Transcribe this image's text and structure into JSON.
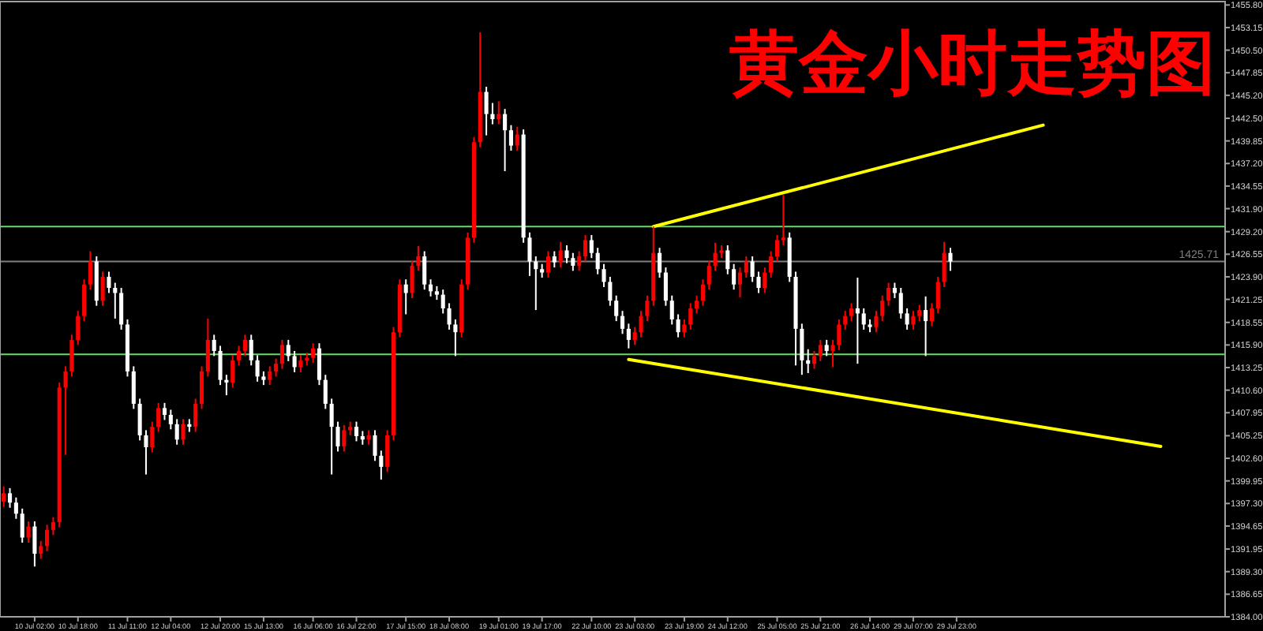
{
  "chart_data": {
    "type": "candlestick",
    "title": "黄金小时走势图",
    "categories": [
      null,
      null,
      null,
      null,
      null,
      "10 Jul 02:00",
      null,
      null,
      null,
      null,
      null,
      null,
      "10 Jul 18:00",
      null,
      null,
      null,
      null,
      null,
      null,
      null,
      "11 Jul 11:00",
      null,
      null,
      null,
      null,
      null,
      null,
      "12 Jul 04:00",
      null,
      null,
      null,
      null,
      null,
      null,
      null,
      "12 Jul 20:00",
      null,
      null,
      null,
      null,
      null,
      null,
      "15 Jul 13:00",
      null,
      null,
      null,
      null,
      null,
      null,
      null,
      "16 Jul 06:00",
      null,
      null,
      null,
      null,
      null,
      null,
      "16 Jul 22:00",
      null,
      null,
      null,
      null,
      null,
      null,
      null,
      "17 Jul 15:00",
      null,
      null,
      null,
      null,
      null,
      null,
      "18 Jul 08:00",
      null,
      null,
      null,
      null,
      null,
      null,
      null,
      "19 Jul 01:00",
      null,
      null,
      null,
      null,
      null,
      null,
      "19 Jul 17:00",
      null,
      null,
      null,
      null,
      null,
      null,
      null,
      "22 Jul 10:00",
      null,
      null,
      null,
      null,
      null,
      null,
      "23 Jul 03:00",
      null,
      null,
      null,
      null,
      null,
      null,
      null,
      "23 Jul 19:00",
      null,
      null,
      null,
      null,
      null,
      null,
      "24 Jul 12:00",
      null,
      null,
      null,
      null,
      null,
      null,
      null,
      "25 Jul 05:00",
      null,
      null,
      null,
      null,
      null,
      null,
      "25 Jul 21:00",
      null,
      null,
      null,
      null,
      null,
      null,
      null,
      "26 Jul 14:00",
      null,
      null,
      null,
      null,
      null,
      null,
      "29 Jul 07:00",
      null,
      null,
      null,
      null,
      null,
      null,
      "29 Jul 23:00",
      null,
      null,
      null,
      null,
      null,
      null,
      null,
      null,
      null,
      null,
      null,
      null,
      null,
      null,
      null,
      null,
      null,
      null,
      null,
      null,
      null,
      null,
      null,
      null,
      null,
      null,
      null,
      null,
      null,
      null,
      null,
      null,
      null,
      null,
      null,
      null,
      null,
      null,
      null,
      null,
      null,
      null,
      null
    ],
    "ohlc": [
      [
        1397.5,
        1399.3,
        1396.9,
        1398.5
      ],
      [
        1398.5,
        1399.1,
        1396.8,
        1397.4
      ],
      [
        1397.4,
        1398.0,
        1395.5,
        1396.1
      ],
      [
        1396.1,
        1396.7,
        1392.7,
        1393.3
      ],
      [
        1393.3,
        1395.2,
        1392.7,
        1394.6
      ],
      [
        1394.6,
        1395.2,
        1389.9,
        1391.4
      ],
      [
        1391.4,
        1392.9,
        1390.8,
        1392.3
      ],
      [
        1392.3,
        1394.8,
        1391.7,
        1394.2
      ],
      [
        1394.2,
        1395.7,
        1393.6,
        1395.1
      ],
      [
        1395.1,
        1411.5,
        1394.5,
        1410.9
      ],
      [
        1410.9,
        1413.4,
        1403.0,
        1412.8
      ],
      [
        1412.8,
        1417.1,
        1412.2,
        1416.5
      ],
      [
        1416.5,
        1419.9,
        1415.9,
        1419.3
      ],
      [
        1419.3,
        1423.6,
        1418.7,
        1423.0
      ],
      [
        1423.0,
        1426.9,
        1422.4,
        1425.7
      ],
      [
        1425.7,
        1426.3,
        1420.5,
        1421.1
      ],
      [
        1421.1,
        1424.5,
        1420.5,
        1423.9
      ],
      [
        1423.9,
        1424.5,
        1422.0,
        1422.6
      ],
      [
        1422.6,
        1423.2,
        1419.0,
        1422.0
      ],
      [
        1422.0,
        1422.6,
        1417.7,
        1418.3
      ],
      [
        1418.3,
        1418.9,
        1412.2,
        1412.8
      ],
      [
        1412.8,
        1413.4,
        1408.4,
        1409.0
      ],
      [
        1409.0,
        1409.6,
        1404.7,
        1405.3
      ],
      [
        1405.3,
        1405.9,
        1400.7,
        1403.9
      ],
      [
        1403.9,
        1406.9,
        1403.3,
        1406.3
      ],
      [
        1406.3,
        1409.1,
        1405.7,
        1408.5
      ],
      [
        1408.5,
        1409.1,
        1407.1,
        1407.7
      ],
      [
        1407.7,
        1408.3,
        1406.0,
        1406.6
      ],
      [
        1406.6,
        1407.2,
        1404.2,
        1404.8
      ],
      [
        1404.8,
        1407.2,
        1404.2,
        1406.6
      ],
      [
        1406.6,
        1407.2,
        1405.7,
        1406.3
      ],
      [
        1406.3,
        1409.6,
        1405.7,
        1409.0
      ],
      [
        1409.0,
        1413.4,
        1408.4,
        1412.8
      ],
      [
        1412.8,
        1419.0,
        1412.2,
        1416.5
      ],
      [
        1416.5,
        1417.1,
        1414.6,
        1415.2
      ],
      [
        1415.2,
        1415.8,
        1411.2,
        1411.8
      ],
      [
        1411.8,
        1412.4,
        1410.0,
        1411.5
      ],
      [
        1411.5,
        1414.7,
        1410.9,
        1414.1
      ],
      [
        1414.1,
        1415.8,
        1413.5,
        1415.2
      ],
      [
        1415.2,
        1417.1,
        1414.6,
        1416.5
      ],
      [
        1416.5,
        1417.1,
        1413.5,
        1414.1
      ],
      [
        1414.1,
        1414.7,
        1411.6,
        1412.2
      ],
      [
        1412.2,
        1412.8,
        1411.2,
        1411.8
      ],
      [
        1411.8,
        1413.4,
        1411.2,
        1412.8
      ],
      [
        1412.8,
        1414.3,
        1412.2,
        1413.7
      ],
      [
        1413.7,
        1416.5,
        1413.1,
        1415.9
      ],
      [
        1415.9,
        1416.5,
        1414.0,
        1414.6
      ],
      [
        1414.6,
        1415.2,
        1412.7,
        1413.3
      ],
      [
        1413.3,
        1414.7,
        1412.7,
        1414.1
      ],
      [
        1414.1,
        1415.0,
        1413.5,
        1414.4
      ],
      [
        1414.4,
        1416.1,
        1413.8,
        1415.5
      ],
      [
        1415.5,
        1416.1,
        1411.2,
        1411.8
      ],
      [
        1411.8,
        1412.4,
        1408.4,
        1409.0
      ],
      [
        1409.0,
        1409.6,
        1400.7,
        1406.3
      ],
      [
        1406.3,
        1406.9,
        1403.4,
        1404.0
      ],
      [
        1404.0,
        1406.5,
        1403.4,
        1405.9
      ],
      [
        1405.9,
        1406.9,
        1405.3,
        1406.3
      ],
      [
        1406.3,
        1406.9,
        1404.6,
        1405.2
      ],
      [
        1405.2,
        1405.8,
        1404.2,
        1404.8
      ],
      [
        1404.8,
        1405.9,
        1404.2,
        1405.3
      ],
      [
        1405.3,
        1405.9,
        1402.3,
        1402.9
      ],
      [
        1402.9,
        1403.5,
        1400.1,
        1401.6
      ],
      [
        1401.6,
        1405.9,
        1401.0,
        1405.3
      ],
      [
        1405.3,
        1418.0,
        1404.7,
        1417.4
      ],
      [
        1417.4,
        1423.6,
        1416.8,
        1423.0
      ],
      [
        1423.0,
        1423.6,
        1419.5,
        1422.0
      ],
      [
        1422.0,
        1425.8,
        1421.4,
        1425.2
      ],
      [
        1425.2,
        1427.5,
        1424.6,
        1426.3
      ],
      [
        1426.3,
        1426.9,
        1422.4,
        1423.0
      ],
      [
        1423.0,
        1423.6,
        1421.6,
        1422.2
      ],
      [
        1422.2,
        1422.8,
        1421.2,
        1421.8
      ],
      [
        1421.8,
        1422.4,
        1419.6,
        1420.2
      ],
      [
        1420.2,
        1420.8,
        1417.7,
        1418.3
      ],
      [
        1418.3,
        1418.9,
        1414.6,
        1417.4
      ],
      [
        1417.4,
        1423.6,
        1416.8,
        1423.0
      ],
      [
        1423.0,
        1429.1,
        1422.4,
        1428.5
      ],
      [
        1428.5,
        1440.3,
        1427.9,
        1439.7
      ],
      [
        1439.7,
        1452.6,
        1439.1,
        1445.6
      ],
      [
        1445.6,
        1446.2,
        1440.5,
        1443.0
      ],
      [
        1443.0,
        1444.3,
        1441.8,
        1442.4
      ],
      [
        1442.4,
        1444.5,
        1441.8,
        1443.0
      ],
      [
        1443.0,
        1443.6,
        1436.3,
        1441.1
      ],
      [
        1441.1,
        1441.7,
        1438.7,
        1439.3
      ],
      [
        1439.3,
        1441.5,
        1438.7,
        1440.6
      ],
      [
        1440.6,
        1441.2,
        1427.9,
        1428.5
      ],
      [
        1428.5,
        1429.1,
        1424.0,
        1425.7
      ],
      [
        1425.7,
        1426.3,
        1420.0,
        1424.8
      ],
      [
        1424.8,
        1425.4,
        1423.8,
        1424.4
      ],
      [
        1424.4,
        1426.9,
        1423.8,
        1426.3
      ],
      [
        1426.3,
        1426.9,
        1425.0,
        1425.6
      ],
      [
        1425.6,
        1428.0,
        1425.0,
        1427.0
      ],
      [
        1427.0,
        1427.6,
        1425.5,
        1426.1
      ],
      [
        1426.1,
        1426.7,
        1424.6,
        1425.2
      ],
      [
        1425.2,
        1426.9,
        1424.6,
        1426.3
      ],
      [
        1426.3,
        1428.8,
        1425.7,
        1428.2
      ],
      [
        1428.2,
        1428.8,
        1426.1,
        1426.7
      ],
      [
        1426.7,
        1427.3,
        1424.2,
        1424.8
      ],
      [
        1424.8,
        1425.4,
        1422.7,
        1423.3
      ],
      [
        1423.3,
        1423.9,
        1420.5,
        1421.1
      ],
      [
        1421.1,
        1421.7,
        1418.7,
        1419.3
      ],
      [
        1419.3,
        1419.9,
        1417.2,
        1417.8
      ],
      [
        1417.8,
        1418.4,
        1415.5,
        1416.5
      ],
      [
        1416.5,
        1418.0,
        1415.9,
        1417.4
      ],
      [
        1417.4,
        1419.9,
        1416.8,
        1419.3
      ],
      [
        1419.3,
        1421.7,
        1418.7,
        1421.1
      ],
      [
        1421.1,
        1429.8,
        1420.5,
        1426.7
      ],
      [
        1426.7,
        1427.3,
        1423.8,
        1424.4
      ],
      [
        1424.4,
        1425.0,
        1420.5,
        1421.1
      ],
      [
        1421.1,
        1421.7,
        1418.3,
        1418.9
      ],
      [
        1418.9,
        1419.5,
        1416.8,
        1417.4
      ],
      [
        1417.4,
        1418.9,
        1416.8,
        1418.3
      ],
      [
        1418.3,
        1420.8,
        1417.7,
        1420.2
      ],
      [
        1420.2,
        1421.7,
        1419.6,
        1421.1
      ],
      [
        1421.1,
        1423.6,
        1420.5,
        1423.0
      ],
      [
        1423.0,
        1425.8,
        1422.4,
        1425.2
      ],
      [
        1425.2,
        1427.9,
        1424.6,
        1426.7
      ],
      [
        1426.7,
        1427.6,
        1426.1,
        1427.0
      ],
      [
        1427.0,
        1427.6,
        1424.2,
        1424.8
      ],
      [
        1424.8,
        1425.4,
        1422.4,
        1423.0
      ],
      [
        1423.0,
        1425.0,
        1421.5,
        1424.4
      ],
      [
        1424.4,
        1426.3,
        1423.8,
        1425.7
      ],
      [
        1425.7,
        1426.3,
        1423.3,
        1423.9
      ],
      [
        1423.9,
        1424.5,
        1422.0,
        1422.6
      ],
      [
        1422.6,
        1425.0,
        1422.0,
        1424.4
      ],
      [
        1424.4,
        1426.9,
        1423.8,
        1426.3
      ],
      [
        1426.3,
        1428.8,
        1425.7,
        1428.2
      ],
      [
        1428.2,
        1433.5,
        1427.6,
        1428.5
      ],
      [
        1428.5,
        1429.1,
        1423.3,
        1423.9
      ],
      [
        1423.9,
        1424.5,
        1413.5,
        1417.8
      ],
      [
        1417.8,
        1418.4,
        1412.4,
        1414.1
      ],
      [
        1414.1,
        1415.4,
        1412.6,
        1413.7
      ],
      [
        1413.7,
        1415.2,
        1413.1,
        1414.6
      ],
      [
        1414.6,
        1416.5,
        1414.0,
        1415.9
      ],
      [
        1415.9,
        1416.5,
        1414.6,
        1415.2
      ],
      [
        1415.2,
        1416.5,
        1413.3,
        1415.9
      ],
      [
        1415.9,
        1418.9,
        1415.3,
        1418.3
      ],
      [
        1418.3,
        1419.9,
        1417.7,
        1419.3
      ],
      [
        1419.3,
        1420.8,
        1418.7,
        1420.2
      ],
      [
        1420.2,
        1423.8,
        1413.7,
        1419.6
      ],
      [
        1419.6,
        1420.2,
        1417.7,
        1418.3
      ],
      [
        1418.3,
        1418.9,
        1417.4,
        1418.0
      ],
      [
        1418.0,
        1419.9,
        1417.4,
        1419.3
      ],
      [
        1419.3,
        1421.7,
        1418.7,
        1421.1
      ],
      [
        1421.1,
        1423.2,
        1420.5,
        1422.6
      ],
      [
        1422.6,
        1423.2,
        1421.4,
        1422.0
      ],
      [
        1422.0,
        1422.6,
        1419.0,
        1419.6
      ],
      [
        1419.6,
        1420.2,
        1417.7,
        1418.3
      ],
      [
        1418.3,
        1419.9,
        1417.7,
        1419.3
      ],
      [
        1419.3,
        1420.6,
        1418.7,
        1420.0
      ],
      [
        1420.0,
        1421.6,
        1414.6,
        1418.7
      ],
      [
        1418.7,
        1420.8,
        1418.1,
        1420.2
      ],
      [
        1420.2,
        1423.9,
        1419.6,
        1423.3
      ],
      [
        1423.3,
        1428.0,
        1422.7,
        1426.7
      ],
      [
        1426.7,
        1427.3,
        1424.6,
        1425.7
      ],
      null,
      null,
      null,
      null,
      null,
      null,
      null,
      null,
      null,
      null,
      null,
      null,
      null,
      null,
      null,
      null,
      null,
      null,
      null,
      null,
      null,
      null,
      null,
      null,
      null,
      null,
      null,
      null,
      null,
      null,
      null,
      null,
      null,
      null,
      null,
      null,
      null,
      null,
      null,
      null,
      null,
      null,
      null,
      null
    ],
    "series": [
      {
        "type": "line",
        "color": "#ffff00",
        "values": [
          null,
          null,
          null,
          null,
          null,
          null,
          null,
          null,
          null,
          null,
          null,
          null,
          null,
          null,
          null,
          null,
          null,
          null,
          null,
          null,
          null,
          null,
          null,
          null,
          null,
          null,
          null,
          null,
          null,
          null,
          null,
          null,
          null,
          null,
          null,
          null,
          null,
          null,
          null,
          null,
          null,
          null,
          null,
          null,
          null,
          null,
          null,
          null,
          null,
          null,
          null,
          null,
          null,
          null,
          null,
          null,
          null,
          null,
          null,
          null,
          null,
          null,
          null,
          null,
          null,
          null,
          null,
          null,
          null,
          null,
          null,
          null,
          null,
          null,
          null,
          null,
          null,
          null,
          null,
          null,
          null,
          null,
          null,
          null,
          null,
          null,
          null,
          null,
          null,
          null,
          null,
          null,
          null,
          null,
          null,
          null,
          null,
          null,
          null,
          null,
          null,
          null,
          null,
          null,
          null,
          1429.8,
          null,
          null,
          null,
          null,
          null,
          null,
          null,
          null,
          null,
          null,
          null,
          null,
          null,
          null,
          null,
          null,
          null,
          null,
          null,
          null,
          null,
          null,
          null,
          null,
          null,
          null,
          null,
          null,
          null,
          null,
          null,
          null,
          null,
          null,
          null,
          null,
          null,
          null,
          null,
          null,
          null,
          null,
          null,
          null,
          null,
          null,
          null,
          null,
          null,
          null,
          null,
          null,
          null,
          null,
          null,
          null,
          null,
          null,
          null,
          null,
          null,
          null,
          1441.7,
          null,
          null,
          null,
          null,
          null,
          null,
          null,
          null,
          null,
          null,
          null,
          null,
          null,
          null,
          null,
          null,
          null,
          null,
          null,
          null,
          null,
          null,
          null,
          null,
          null,
          null,
          null,
          null,
          null
        ]
      },
      {
        "type": "line",
        "color": "#ffff00",
        "values": [
          null,
          null,
          null,
          null,
          null,
          null,
          null,
          null,
          null,
          null,
          null,
          null,
          null,
          null,
          null,
          null,
          null,
          null,
          null,
          null,
          null,
          null,
          null,
          null,
          null,
          null,
          null,
          null,
          null,
          null,
          null,
          null,
          null,
          null,
          null,
          null,
          null,
          null,
          null,
          null,
          null,
          null,
          null,
          null,
          null,
          null,
          null,
          null,
          null,
          null,
          null,
          null,
          null,
          null,
          null,
          null,
          null,
          null,
          null,
          null,
          null,
          null,
          null,
          null,
          null,
          null,
          null,
          null,
          null,
          null,
          null,
          null,
          null,
          null,
          null,
          null,
          null,
          null,
          null,
          null,
          null,
          null,
          null,
          null,
          null,
          null,
          null,
          null,
          null,
          null,
          null,
          null,
          null,
          null,
          null,
          null,
          null,
          null,
          null,
          null,
          null,
          1414.2,
          null,
          null,
          null,
          null,
          null,
          null,
          null,
          null,
          null,
          null,
          null,
          null,
          null,
          null,
          null,
          null,
          null,
          null,
          null,
          null,
          null,
          null,
          null,
          null,
          null,
          null,
          null,
          null,
          null,
          null,
          null,
          null,
          null,
          null,
          null,
          null,
          null,
          null,
          null,
          null,
          null,
          null,
          null,
          null,
          null,
          null,
          null,
          null,
          null,
          null,
          null,
          null,
          null,
          null,
          null,
          null,
          null,
          null,
          null,
          null,
          null,
          null,
          null,
          null,
          null,
          null,
          null,
          null,
          null,
          null,
          null,
          null,
          null,
          null,
          null,
          null,
          null,
          null,
          null,
          null,
          null,
          null,
          null,
          null,
          null,
          1404.0,
          null,
          null,
          null,
          null,
          null,
          null,
          null,
          null,
          null,
          null
        ]
      }
    ],
    "ref_lines": [
      {
        "axis": "y",
        "value": 1429.8,
        "color": "#66dd66"
      },
      {
        "axis": "y",
        "value": 1414.8,
        "color": "#66dd66"
      },
      {
        "axis": "y",
        "value": 1425.71,
        "label": "1425.71",
        "color": "#808080"
      }
    ],
    "ylim": [
      1384.0,
      1456.2
    ],
    "yticks": [
      {
        "value": 1455.8,
        "label": "1455.80"
      },
      1453.15,
      {
        "value": 1450.5,
        "label": "1450.50"
      },
      1447.85,
      {
        "value": 1445.2,
        "label": "1445.20"
      },
      {
        "value": 1442.5,
        "label": "1442.50"
      },
      1439.85,
      {
        "value": 1437.2,
        "label": "1437.20"
      },
      1434.55,
      {
        "value": 1431.9,
        "label": "1431.90"
      },
      {
        "value": 1429.2,
        "label": "1429.20"
      },
      1426.55,
      {
        "value": 1423.9,
        "label": "1423.90"
      },
      1421.25,
      1418.55,
      {
        "value": 1415.9,
        "label": "1415.90"
      },
      1413.25,
      {
        "value": 1410.6,
        "label": "1410.60"
      },
      1407.95,
      1405.25,
      {
        "value": 1402.6,
        "label": "1402.60"
      },
      1399.95,
      {
        "value": 1397.3,
        "label": "1397.30"
      },
      1394.65,
      1391.95,
      {
        "value": 1389.3,
        "label": "1389.30"
      },
      1386.65,
      {
        "value": 1384.0,
        "label": "1384.00"
      }
    ]
  }
}
